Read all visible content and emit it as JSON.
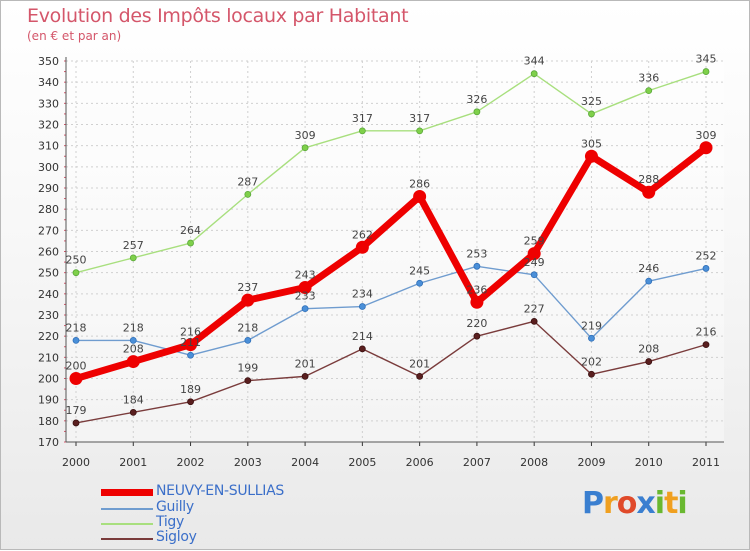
{
  "title": "Evolution des Impôts locaux par Habitant",
  "subtitle": "(en € et par an)",
  "logo": {
    "text": "Proxiti",
    "letters": [
      "P",
      "r",
      "o",
      "x",
      "i",
      "t",
      "i"
    ],
    "colors": [
      "#3a7fd0",
      "#f0a020",
      "#e04a2a",
      "#3a7fd0",
      "#69b830",
      "#f0a020",
      "#69b830"
    ]
  },
  "chart_data": {
    "type": "line",
    "title": "Evolution des Impôts locaux par Habitant",
    "subtitle": "(en € et par an)",
    "x": [
      "2000",
      "2001",
      "2002",
      "2003",
      "2004",
      "2005",
      "2006",
      "2007",
      "2008",
      "2009",
      "2010",
      "2011"
    ],
    "ylim": [
      170,
      350
    ],
    "yticks": [
      170,
      180,
      190,
      200,
      210,
      220,
      230,
      240,
      250,
      260,
      270,
      280,
      290,
      300,
      310,
      320,
      330,
      340,
      350
    ],
    "grid": true,
    "legend": "bottom-left",
    "series": [
      {
        "name": "NEUVY-EN-SULLIAS",
        "color": "#ee0000",
        "values": [
          200,
          208,
          216,
          237,
          243,
          262,
          286,
          236,
          259,
          305,
          288,
          309
        ]
      },
      {
        "name": "Guilly",
        "color": "#6f9ccf",
        "values": [
          218,
          218,
          211,
          218,
          233,
          234,
          245,
          253,
          249,
          219,
          246,
          252
        ]
      },
      {
        "name": "Tigy",
        "color": "#a8df7e",
        "values": [
          250,
          257,
          264,
          287,
          309,
          317,
          317,
          326,
          344,
          325,
          336,
          345
        ]
      },
      {
        "name": "Sigloy",
        "color": "#7a3c3c",
        "values": [
          179,
          184,
          189,
          199,
          201,
          214,
          201,
          220,
          227,
          202,
          208,
          216
        ]
      }
    ]
  }
}
